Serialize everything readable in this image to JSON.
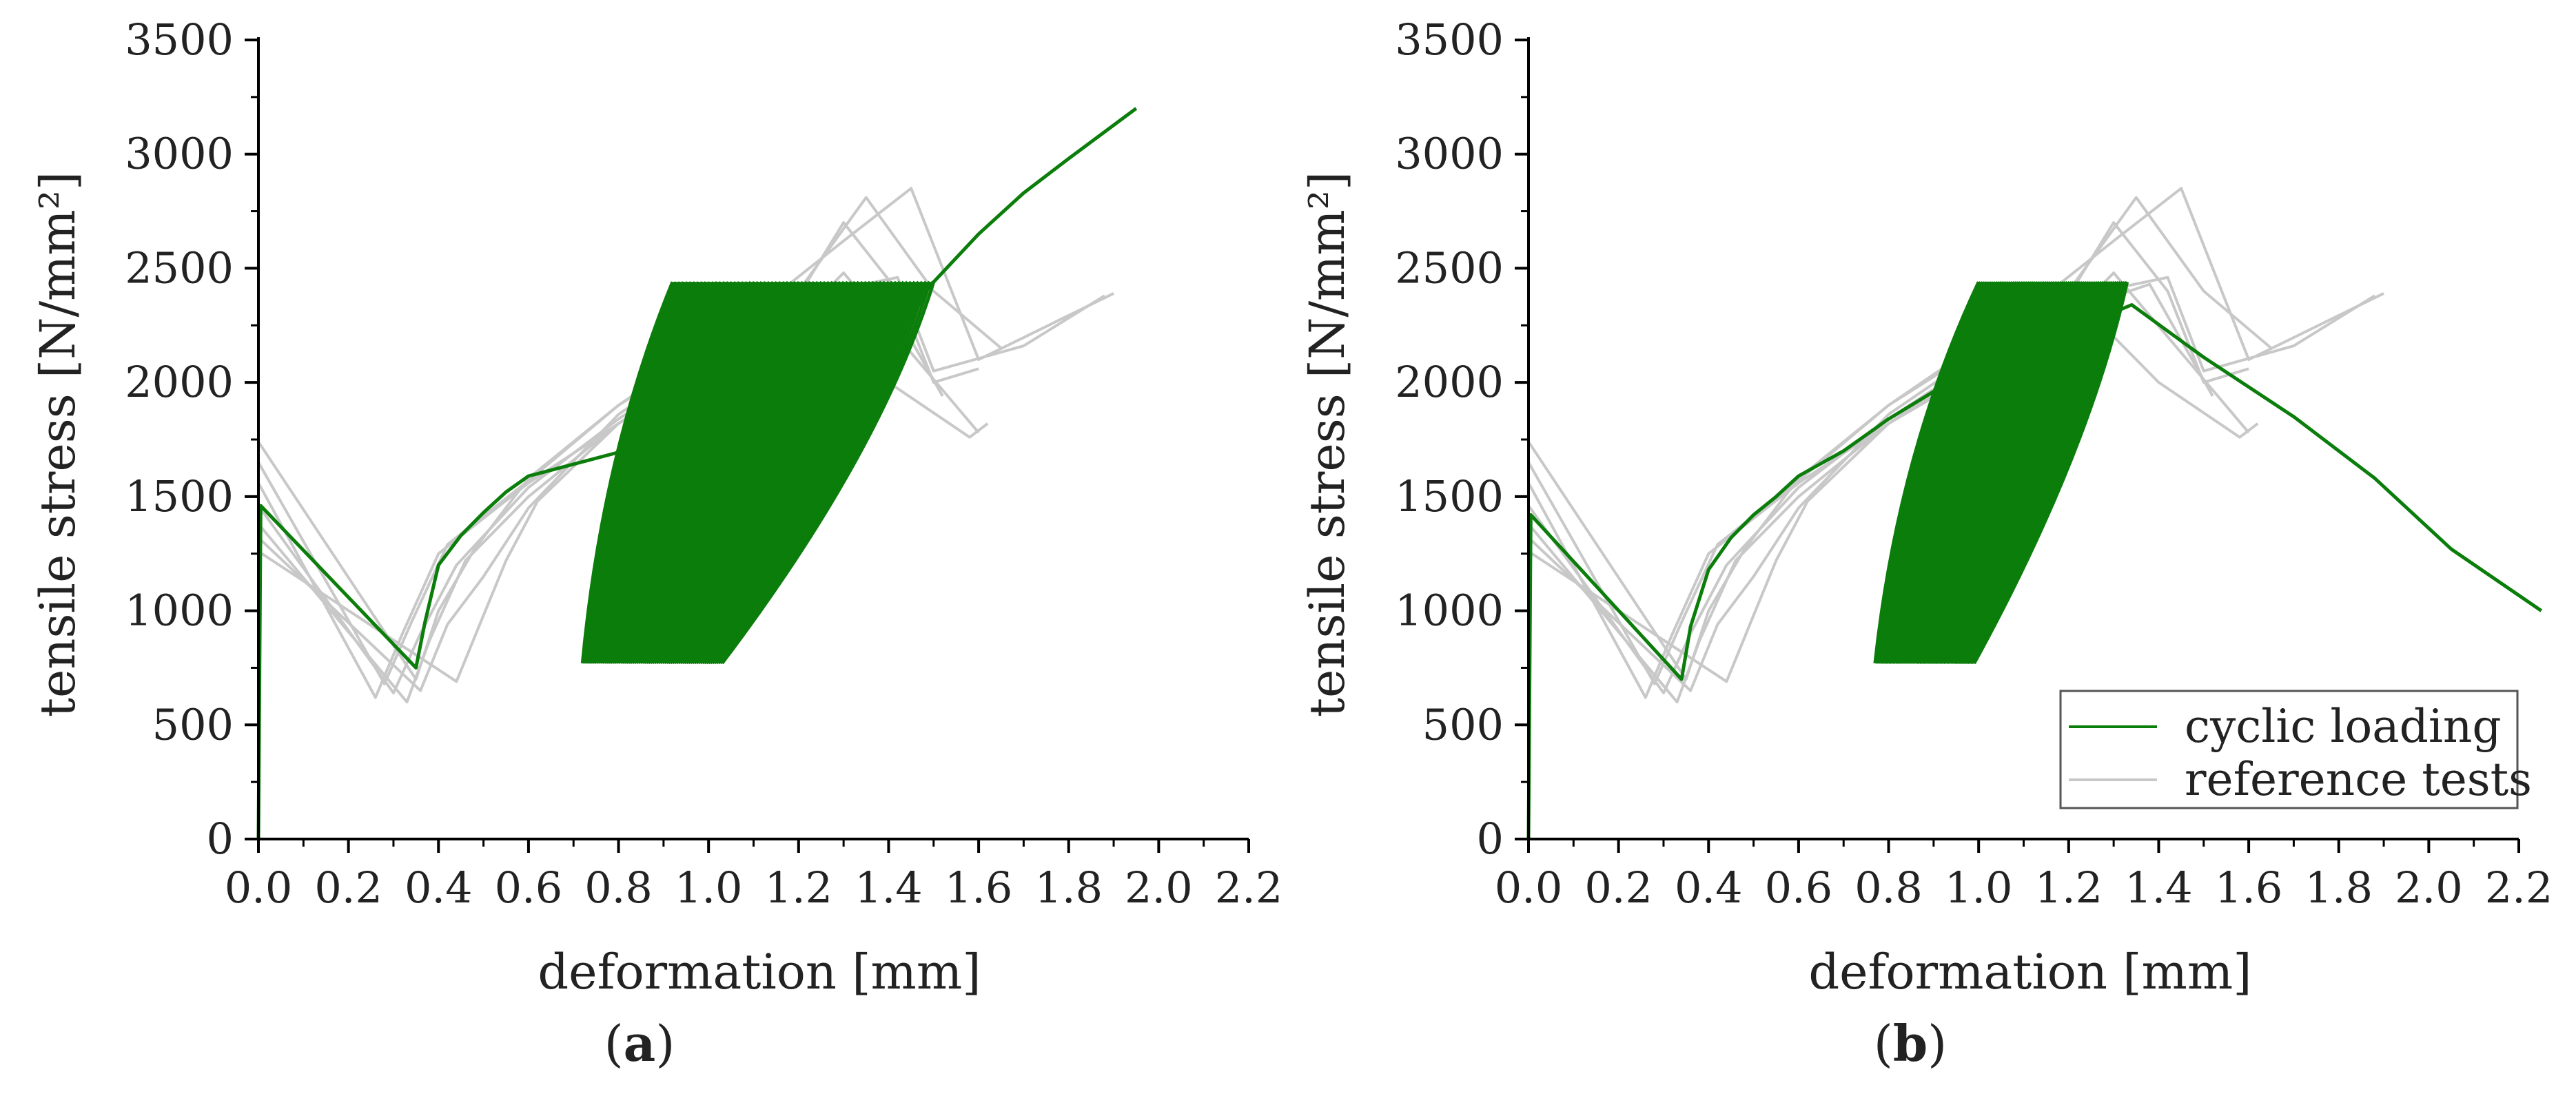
{
  "panels": [
    {
      "label_open": "(",
      "label_letter": "a",
      "label_close": ")"
    },
    {
      "label_open": "(",
      "label_letter": "b",
      "label_close": ")"
    }
  ],
  "legend": {
    "cyclic": "cyclic loading",
    "reference": "reference tests"
  },
  "colors": {
    "cyclic": "#0a7d0a",
    "reference": "#c8c8c8",
    "axis": "#000000"
  },
  "chart_data": [
    {
      "type": "line",
      "xlabel": "deformation [mm]",
      "ylabel": "tensile stress [N/mm²]",
      "xlim": [
        0,
        2.2
      ],
      "ylim": [
        0,
        3500
      ],
      "xticks": [
        "0.0",
        "0.2",
        "0.4",
        "0.6",
        "0.8",
        "1.0",
        "1.2",
        "1.4",
        "1.6",
        "1.8",
        "2.0",
        "2.2"
      ],
      "yticks": [
        "0",
        "500",
        "1000",
        "1500",
        "2000",
        "2500",
        "3000",
        "3500"
      ],
      "legend": false,
      "series": [
        {
          "name": "cyclic loading",
          "x": [
            0,
            0.005,
            0.35,
            0.37,
            0.4,
            0.45,
            0.5,
            0.55,
            0.6,
            0.62,
            0.85,
            1.0,
            1.2,
            1.4,
            1.5,
            1.6,
            1.7,
            1.8,
            1.95
          ],
          "y": [
            0,
            1460,
            750,
            950,
            1200,
            1330,
            1430,
            1520,
            1590,
            1600,
            1720,
            1900,
            2100,
            2300,
            2440,
            2650,
            2830,
            2980,
            3200
          ],
          "cyclic_band": {
            "stress_min": 770,
            "stress_max": 2440,
            "x_lower_start": 0.72,
            "x_lower_end": 1.03,
            "x_upper_start": 0.92,
            "x_upper_end": 1.5
          }
        },
        {
          "name": "reference tests",
          "curves": [
            {
              "x": [
                0,
                0.26,
                0.32,
                0.4,
                0.6,
                0.8,
                1.0,
                1.2,
                1.25,
                1.4,
                1.58,
                1.62
              ],
              "y": [
                1560,
                620,
                900,
                1250,
                1560,
                1820,
                2050,
                2240,
                2300,
                2000,
                1760,
                1820
              ]
            },
            {
              "x": [
                0,
                0.28,
                0.34,
                0.42,
                0.6,
                0.8,
                1.0,
                1.2,
                1.35,
                1.5,
                1.65
              ],
              "y": [
                1650,
                680,
                950,
                1290,
                1570,
                1900,
                2170,
                2400,
                2810,
                2400,
                2150
              ]
            },
            {
              "x": [
                0,
                0.3,
                0.36,
                0.44,
                0.6,
                0.8,
                1.0,
                1.2,
                1.3,
                1.42,
                1.5,
                1.6
              ],
              "y": [
                1460,
                640,
                900,
                1200,
                1540,
                1840,
                2100,
                2380,
                2700,
                2400,
                2000,
                2060
              ]
            },
            {
              "x": [
                0,
                0.33,
                0.38,
                0.46,
                0.6,
                0.8,
                1.0,
                1.2,
                1.3,
                1.6
              ],
              "y": [
                1380,
                600,
                870,
                1220,
                1500,
                1820,
                2060,
                2280,
                2480,
                1780
              ]
            },
            {
              "x": [
                0,
                0.35,
                0.4,
                0.48,
                0.6,
                0.8,
                1.0,
                1.3,
                1.45,
                1.6,
                1.9
              ],
              "y": [
                1740,
                700,
                1000,
                1270,
                1580,
                1900,
                2150,
                2620,
                2850,
                2100,
                2390
              ]
            },
            {
              "x": [
                0,
                0.36,
                0.42,
                0.5,
                0.6,
                0.8,
                1.0,
                1.2,
                1.42,
                1.5,
                1.7,
                1.88
              ],
              "y": [
                1320,
                650,
                940,
                1150,
                1450,
                1860,
                2130,
                2370,
                2460,
                2050,
                2160,
                2380
              ]
            },
            {
              "x": [
                0,
                0.44,
                0.5,
                0.55,
                0.62,
                0.8,
                1.0,
                1.2,
                1.38,
                1.52
              ],
              "y": [
                1260,
                690,
                980,
                1220,
                1480,
                1820,
                2080,
                2310,
                2430,
                1940
              ]
            }
          ]
        }
      ]
    },
    {
      "type": "line",
      "xlabel": "deformation [mm]",
      "ylabel": "tensile stress [N/mm²]",
      "xlim": [
        0,
        2.2
      ],
      "ylim": [
        0,
        3500
      ],
      "xticks": [
        "0.0",
        "0.2",
        "0.4",
        "0.6",
        "0.8",
        "1.0",
        "1.2",
        "1.4",
        "1.6",
        "1.8",
        "2.0",
        "2.2"
      ],
      "yticks": [
        "0",
        "500",
        "1000",
        "1500",
        "2000",
        "2500",
        "3000",
        "3500"
      ],
      "legend": true,
      "legend_position": "bottom-right",
      "series": [
        {
          "name": "cyclic loading",
          "x": [
            0,
            0.005,
            0.34,
            0.36,
            0.4,
            0.45,
            0.5,
            0.55,
            0.6,
            0.7,
            0.8,
            0.9,
            1.0,
            1.34,
            1.5,
            1.7,
            1.88,
            2.05,
            2.25
          ],
          "y": [
            0,
            1420,
            700,
            930,
            1180,
            1320,
            1420,
            1500,
            1590,
            1700,
            1840,
            1960,
            2060,
            2340,
            2110,
            1850,
            1580,
            1270,
            1000
          ],
          "cyclic_band": {
            "stress_min": 770,
            "stress_max": 2440,
            "x_lower_start": 0.77,
            "x_lower_end": 0.99,
            "x_upper_start": 1.0,
            "x_upper_end": 1.33
          }
        },
        {
          "name": "reference tests",
          "curves": [
            {
              "x": [
                0,
                0.26,
                0.32,
                0.4,
                0.6,
                0.8,
                1.0,
                1.2,
                1.25,
                1.4,
                1.58,
                1.62
              ],
              "y": [
                1560,
                620,
                900,
                1250,
                1560,
                1820,
                2050,
                2240,
                2300,
                2000,
                1760,
                1820
              ]
            },
            {
              "x": [
                0,
                0.28,
                0.34,
                0.42,
                0.6,
                0.8,
                1.0,
                1.2,
                1.35,
                1.5,
                1.65
              ],
              "y": [
                1650,
                680,
                950,
                1290,
                1570,
                1900,
                2170,
                2400,
                2810,
                2400,
                2150
              ]
            },
            {
              "x": [
                0,
                0.3,
                0.36,
                0.44,
                0.6,
                0.8,
                1.0,
                1.2,
                1.3,
                1.42,
                1.5,
                1.6
              ],
              "y": [
                1460,
                640,
                900,
                1200,
                1540,
                1840,
                2100,
                2380,
                2700,
                2400,
                2000,
                2060
              ]
            },
            {
              "x": [
                0,
                0.33,
                0.38,
                0.46,
                0.6,
                0.8,
                1.0,
                1.2,
                1.3,
                1.6
              ],
              "y": [
                1380,
                600,
                870,
                1220,
                1500,
                1820,
                2060,
                2280,
                2480,
                1780
              ]
            },
            {
              "x": [
                0,
                0.35,
                0.4,
                0.48,
                0.6,
                0.8,
                1.0,
                1.3,
                1.45,
                1.6,
                1.9
              ],
              "y": [
                1740,
                700,
                1000,
                1270,
                1580,
                1900,
                2150,
                2620,
                2850,
                2100,
                2390
              ]
            },
            {
              "x": [
                0,
                0.36,
                0.42,
                0.5,
                0.6,
                0.8,
                1.0,
                1.2,
                1.42,
                1.5,
                1.7,
                1.88
              ],
              "y": [
                1320,
                650,
                940,
                1150,
                1450,
                1860,
                2130,
                2370,
                2460,
                2050,
                2160,
                2380
              ]
            },
            {
              "x": [
                0,
                0.44,
                0.5,
                0.55,
                0.62,
                0.8,
                1.0,
                1.2,
                1.38,
                1.52
              ],
              "y": [
                1260,
                690,
                980,
                1220,
                1480,
                1820,
                2080,
                2310,
                2430,
                1940
              ]
            }
          ]
        }
      ]
    }
  ]
}
